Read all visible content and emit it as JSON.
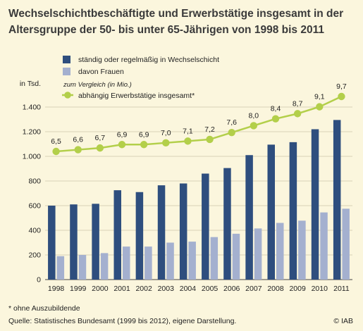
{
  "title": {
    "line1": "Wechselschichtbeschäftigte und Erwerbstätige insgesamt in der",
    "line2": "Altersgruppe der 50- bis unter 65-Jährigen von 1998 bis 2011"
  },
  "legend": {
    "series1": "ständig oder regelmäßig in Wechselschicht",
    "series2": "davon Frauen",
    "comparison_header": "zum Vergleich (in Mio.)",
    "series3": "abhängig Erwerbstätige insgesamt*"
  },
  "y_unit_label": "in Tsd.",
  "footnotes": {
    "note": "* ohne Auszubildende",
    "source": "Quelle: Statistisches Bundesamt (1999 bis 2012), eigene Darstellung.",
    "copyright": "© IAB"
  },
  "colors": {
    "background": "#fbf6dd",
    "series_dark": "#2e4e7e",
    "series_light": "#a4b0cf",
    "line": "#b3cf4a",
    "grid": "#d9d3b6"
  },
  "chart_data": {
    "type": "bar",
    "categories": [
      "1998",
      "1999",
      "2000",
      "2001",
      "2002",
      "2003",
      "2004",
      "2005",
      "2006",
      "2007",
      "2008",
      "2009",
      "2010",
      "2011"
    ],
    "ylabel": "in Tsd.",
    "ylim": [
      0,
      1400
    ],
    "yticks": [
      0,
      200,
      400,
      600,
      800,
      1000,
      1200,
      1400
    ],
    "ytick_labels": [
      "0",
      "200",
      "400",
      "600",
      "800",
      "1.000",
      "1.200",
      "1.400"
    ],
    "grid": true,
    "series": [
      {
        "name": "ständig oder regelmäßig in Wechselschicht",
        "type": "bar",
        "values": [
          600,
          610,
          615,
          725,
          710,
          765,
          780,
          860,
          905,
          1010,
          1095,
          1115,
          1220,
          1295
        ]
      },
      {
        "name": "davon Frauen",
        "type": "bar",
        "values": [
          190,
          200,
          215,
          268,
          268,
          300,
          308,
          345,
          372,
          415,
          460,
          478,
          545,
          575
        ]
      },
      {
        "name": "abhängig Erwerbstätige insgesamt*",
        "type": "line",
        "unit": "Mio.",
        "values": [
          6.5,
          6.6,
          6.7,
          6.9,
          6.9,
          7.0,
          7.1,
          7.2,
          7.6,
          8.0,
          8.4,
          8.7,
          9.1,
          9.7
        ],
        "labels": [
          "6,5",
          "6,6",
          "6,7",
          "6,9",
          "6,9",
          "7,0",
          "7,1",
          "7,2",
          "7,6",
          "8,0",
          "8,4",
          "8,7",
          "9,1",
          "9,7"
        ]
      }
    ]
  }
}
